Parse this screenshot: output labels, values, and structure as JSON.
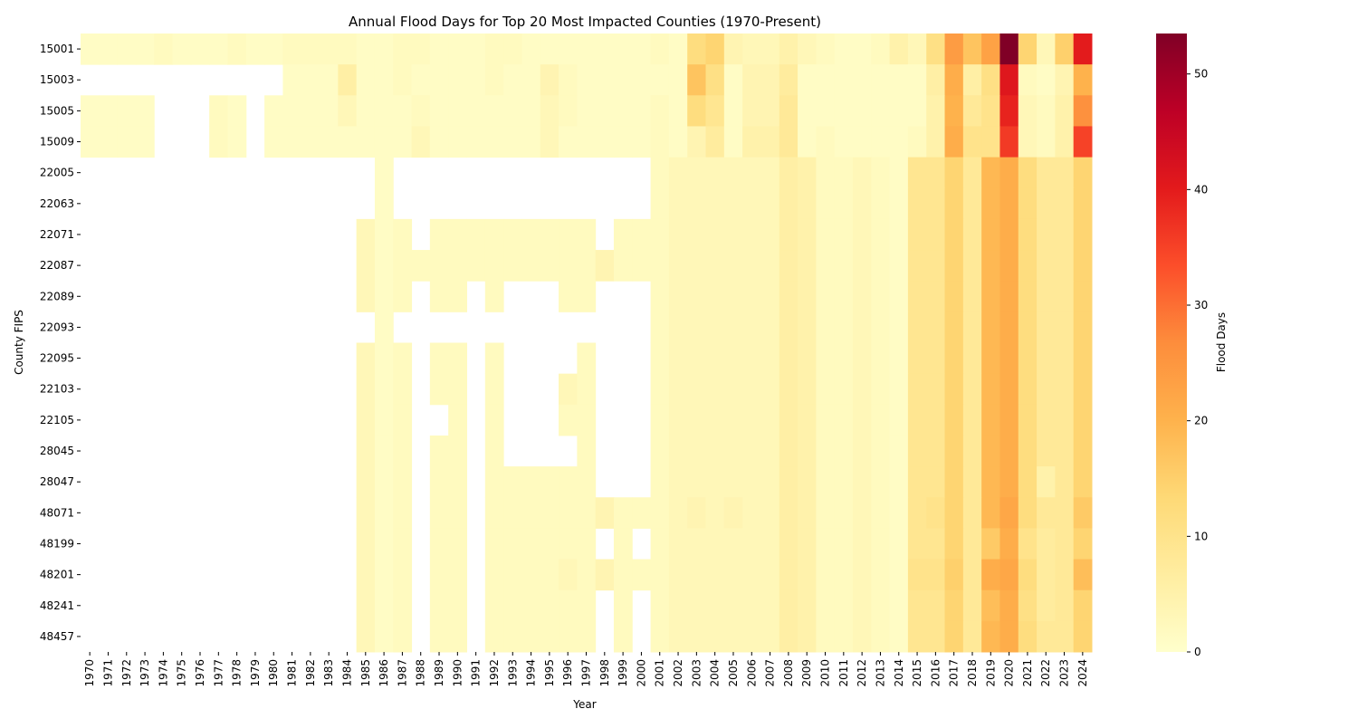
{
  "chart_data": {
    "type": "heatmap",
    "title": "Annual Flood Days for Top 20 Most Impacted Counties (1970-Present)",
    "xlabel": "Year",
    "ylabel": "County FIPS",
    "colorbar_label": "Flood Days",
    "colormap": "YlOrRd",
    "color_range": [
      0,
      53.5
    ],
    "colorbar_ticks": [
      0,
      10,
      20,
      30,
      40,
      50
    ],
    "x": [
      1970,
      1971,
      1972,
      1973,
      1974,
      1975,
      1976,
      1977,
      1978,
      1979,
      1980,
      1981,
      1982,
      1983,
      1984,
      1985,
      1986,
      1987,
      1988,
      1989,
      1990,
      1991,
      1992,
      1993,
      1994,
      1995,
      1996,
      1997,
      1998,
      1999,
      2000,
      2001,
      2002,
      2003,
      2004,
      2005,
      2006,
      2007,
      2008,
      2009,
      2010,
      2011,
      2012,
      2013,
      2014,
      2015,
      2016,
      2017,
      2018,
      2019,
      2020,
      2021,
      2022,
      2023,
      2024
    ],
    "y": [
      "15001",
      "15003",
      "15005",
      "15009",
      "22005",
      "22063",
      "22071",
      "22087",
      "22089",
      "22093",
      "22095",
      "22103",
      "22105",
      "28045",
      "28047",
      "48071",
      "48199",
      "48201",
      "48241",
      "48457"
    ],
    "series": [
      {
        "county": "15001",
        "values": [
          1,
          1,
          1,
          1,
          2,
          1,
          1,
          1,
          2,
          1,
          1,
          2,
          2,
          2,
          2,
          1,
          1,
          2,
          2,
          1,
          1,
          1,
          2,
          2,
          1,
          1,
          1,
          1,
          1,
          1,
          1,
          2,
          1,
          12,
          14,
          4,
          3,
          3,
          5,
          3,
          2,
          1,
          1,
          2,
          5,
          3,
          11,
          24,
          17,
          23,
          53.5,
          14,
          3,
          15,
          40
        ]
      },
      {
        "county": "15003",
        "values": [
          null,
          null,
          null,
          null,
          null,
          null,
          null,
          null,
          null,
          null,
          null,
          1,
          1,
          1,
          6,
          1,
          1,
          2,
          1,
          1,
          1,
          1,
          2,
          1,
          1,
          4,
          2,
          1,
          1,
          1,
          1,
          1,
          1,
          17,
          11,
          1,
          4,
          4,
          7,
          1,
          1,
          1,
          1,
          1,
          1,
          1,
          6,
          21,
          6,
          11,
          41,
          2,
          1,
          4,
          20
        ]
      },
      {
        "county": "15005",
        "values": [
          1,
          1,
          1,
          1,
          null,
          null,
          null,
          2,
          1,
          null,
          1,
          1,
          1,
          1,
          3,
          1,
          1,
          1,
          2,
          1,
          1,
          1,
          1,
          1,
          1,
          3,
          2,
          1,
          1,
          1,
          1,
          2,
          1,
          12,
          9,
          1,
          4,
          4,
          8,
          1,
          1,
          1,
          1,
          1,
          1,
          1,
          5,
          20,
          8,
          10,
          39,
          3,
          2,
          5,
          26
        ]
      },
      {
        "county": "15009",
        "values": [
          1,
          1,
          1,
          1,
          null,
          null,
          null,
          2,
          1,
          null,
          1,
          1,
          1,
          1,
          1,
          1,
          1,
          1,
          3,
          1,
          1,
          1,
          1,
          1,
          1,
          3,
          1,
          1,
          1,
          1,
          1,
          2,
          1,
          4,
          7,
          1,
          5,
          5,
          8,
          1,
          2,
          1,
          1,
          1,
          1,
          2,
          5,
          21,
          10,
          10,
          36,
          3,
          2,
          5,
          35
        ]
      },
      {
        "county": "22005",
        "values": [
          null,
          null,
          null,
          null,
          null,
          null,
          null,
          null,
          null,
          null,
          null,
          null,
          null,
          null,
          null,
          null,
          1,
          null,
          null,
          null,
          null,
          null,
          null,
          null,
          null,
          null,
          null,
          null,
          null,
          null,
          null,
          2,
          3,
          3,
          3,
          3,
          3,
          3,
          6,
          5,
          2,
          2,
          3,
          2,
          1,
          9,
          9,
          14,
          8,
          19,
          21,
          12,
          8,
          8,
          14
        ]
      },
      {
        "county": "22063",
        "values": [
          null,
          null,
          null,
          null,
          null,
          null,
          null,
          null,
          null,
          null,
          null,
          null,
          null,
          null,
          null,
          null,
          1,
          null,
          null,
          null,
          null,
          null,
          null,
          null,
          null,
          null,
          null,
          null,
          null,
          null,
          null,
          2,
          3,
          3,
          3,
          3,
          3,
          3,
          6,
          5,
          2,
          2,
          3,
          2,
          1,
          9,
          9,
          14,
          8,
          19,
          21,
          12,
          8,
          8,
          14
        ]
      },
      {
        "county": "22071",
        "values": [
          null,
          null,
          null,
          null,
          null,
          null,
          null,
          null,
          null,
          null,
          null,
          null,
          null,
          null,
          null,
          3,
          1,
          2,
          null,
          2,
          2,
          2,
          2,
          2,
          2,
          2,
          2,
          2,
          null,
          2,
          2,
          2,
          3,
          3,
          3,
          3,
          3,
          3,
          6,
          5,
          2,
          2,
          3,
          2,
          1,
          9,
          9,
          14,
          8,
          19,
          21,
          12,
          8,
          8,
          14
        ]
      },
      {
        "county": "22087",
        "values": [
          null,
          null,
          null,
          null,
          null,
          null,
          null,
          null,
          null,
          null,
          null,
          null,
          null,
          null,
          null,
          3,
          1,
          2,
          2,
          2,
          2,
          2,
          2,
          2,
          2,
          2,
          2,
          2,
          4,
          2,
          2,
          2,
          3,
          3,
          3,
          3,
          3,
          3,
          6,
          5,
          2,
          2,
          3,
          2,
          1,
          9,
          9,
          14,
          8,
          19,
          21,
          12,
          8,
          8,
          14
        ]
      },
      {
        "county": "22089",
        "values": [
          null,
          null,
          null,
          null,
          null,
          null,
          null,
          null,
          null,
          null,
          null,
          null,
          null,
          null,
          null,
          3,
          1,
          2,
          null,
          2,
          2,
          null,
          2,
          null,
          null,
          null,
          2,
          2,
          null,
          null,
          null,
          2,
          3,
          3,
          3,
          3,
          3,
          3,
          6,
          5,
          2,
          2,
          3,
          2,
          1,
          9,
          9,
          14,
          8,
          19,
          21,
          12,
          8,
          8,
          14
        ]
      },
      {
        "county": "22093",
        "values": [
          null,
          null,
          null,
          null,
          null,
          null,
          null,
          null,
          null,
          null,
          null,
          null,
          null,
          null,
          null,
          null,
          1,
          null,
          null,
          null,
          null,
          null,
          null,
          null,
          null,
          null,
          null,
          null,
          null,
          null,
          null,
          2,
          3,
          3,
          3,
          3,
          3,
          3,
          6,
          5,
          2,
          2,
          3,
          2,
          1,
          9,
          9,
          14,
          8,
          19,
          21,
          12,
          8,
          8,
          14
        ]
      },
      {
        "county": "22095",
        "values": [
          null,
          null,
          null,
          null,
          null,
          null,
          null,
          null,
          null,
          null,
          null,
          null,
          null,
          null,
          null,
          3,
          1,
          2,
          null,
          2,
          2,
          null,
          2,
          null,
          null,
          null,
          null,
          2,
          null,
          null,
          null,
          2,
          3,
          3,
          3,
          3,
          3,
          3,
          6,
          5,
          2,
          2,
          3,
          2,
          1,
          9,
          9,
          14,
          8,
          19,
          21,
          12,
          8,
          8,
          14
        ]
      },
      {
        "county": "22103",
        "values": [
          null,
          null,
          null,
          null,
          null,
          null,
          null,
          null,
          null,
          null,
          null,
          null,
          null,
          null,
          null,
          3,
          1,
          2,
          null,
          2,
          2,
          null,
          2,
          null,
          null,
          null,
          3,
          2,
          null,
          null,
          null,
          2,
          3,
          3,
          3,
          3,
          3,
          3,
          6,
          5,
          2,
          2,
          3,
          2,
          1,
          9,
          9,
          14,
          8,
          19,
          21,
          12,
          8,
          8,
          14
        ]
      },
      {
        "county": "22105",
        "values": [
          null,
          null,
          null,
          null,
          null,
          null,
          null,
          null,
          null,
          null,
          null,
          null,
          null,
          null,
          null,
          3,
          1,
          2,
          null,
          null,
          2,
          null,
          2,
          null,
          null,
          null,
          2,
          2,
          null,
          null,
          null,
          2,
          3,
          3,
          3,
          3,
          3,
          3,
          6,
          5,
          2,
          2,
          3,
          2,
          1,
          9,
          9,
          14,
          8,
          19,
          21,
          12,
          8,
          8,
          14
        ]
      },
      {
        "county": "28045",
        "values": [
          null,
          null,
          null,
          null,
          null,
          null,
          null,
          null,
          null,
          null,
          null,
          null,
          null,
          null,
          null,
          3,
          1,
          2,
          null,
          2,
          2,
          null,
          2,
          null,
          null,
          null,
          null,
          2,
          null,
          null,
          null,
          2,
          3,
          3,
          3,
          3,
          3,
          3,
          6,
          5,
          2,
          2,
          3,
          2,
          1,
          9,
          9,
          14,
          8,
          19,
          21,
          12,
          8,
          8,
          14
        ]
      },
      {
        "county": "28047",
        "values": [
          null,
          null,
          null,
          null,
          null,
          null,
          null,
          null,
          null,
          null,
          null,
          null,
          null,
          null,
          null,
          3,
          1,
          2,
          null,
          2,
          2,
          null,
          2,
          2,
          2,
          2,
          2,
          2,
          null,
          null,
          null,
          2,
          3,
          3,
          3,
          3,
          3,
          3,
          6,
          5,
          2,
          2,
          3,
          2,
          1,
          9,
          9,
          14,
          8,
          19,
          21,
          12,
          5,
          8,
          14
        ]
      },
      {
        "county": "48071",
        "values": [
          null,
          null,
          null,
          null,
          null,
          null,
          null,
          null,
          null,
          null,
          null,
          null,
          null,
          null,
          null,
          3,
          1,
          2,
          null,
          2,
          2,
          null,
          2,
          2,
          2,
          2,
          2,
          2,
          4,
          2,
          2,
          2,
          3,
          4,
          3,
          4,
          3,
          3,
          6,
          5,
          2,
          2,
          3,
          2,
          1,
          9,
          10,
          14,
          8,
          19,
          22,
          12,
          8,
          8,
          16
        ]
      },
      {
        "county": "48199",
        "values": [
          null,
          null,
          null,
          null,
          null,
          null,
          null,
          null,
          null,
          null,
          null,
          null,
          null,
          null,
          null,
          3,
          1,
          2,
          null,
          2,
          2,
          null,
          2,
          2,
          2,
          2,
          2,
          2,
          null,
          2,
          null,
          2,
          3,
          3,
          3,
          3,
          3,
          3,
          6,
          5,
          2,
          2,
          3,
          2,
          1,
          9,
          9,
          14,
          8,
          16,
          21,
          10,
          7,
          8,
          14
        ]
      },
      {
        "county": "48201",
        "values": [
          null,
          null,
          null,
          null,
          null,
          null,
          null,
          null,
          null,
          null,
          null,
          null,
          null,
          null,
          null,
          3,
          1,
          2,
          null,
          2,
          2,
          null,
          2,
          2,
          2,
          2,
          3,
          2,
          4,
          2,
          2,
          2,
          3,
          3,
          3,
          3,
          3,
          3,
          6,
          5,
          2,
          2,
          3,
          2,
          1,
          10,
          10,
          15,
          8,
          21,
          22,
          12,
          7,
          8,
          18
        ]
      },
      {
        "county": "48241",
        "values": [
          null,
          null,
          null,
          null,
          null,
          null,
          null,
          null,
          null,
          null,
          null,
          null,
          null,
          null,
          null,
          3,
          1,
          2,
          null,
          2,
          2,
          null,
          2,
          2,
          2,
          2,
          2,
          2,
          null,
          2,
          null,
          2,
          3,
          3,
          3,
          3,
          3,
          3,
          6,
          5,
          2,
          2,
          3,
          2,
          1,
          9,
          9,
          14,
          8,
          18,
          21,
          11,
          7,
          8,
          14
        ]
      },
      {
        "county": "48457",
        "values": [
          null,
          null,
          null,
          null,
          null,
          null,
          null,
          null,
          null,
          null,
          null,
          null,
          null,
          null,
          null,
          3,
          1,
          2,
          null,
          2,
          2,
          null,
          2,
          2,
          2,
          2,
          2,
          2,
          null,
          2,
          null,
          2,
          3,
          3,
          3,
          3,
          3,
          3,
          6,
          5,
          2,
          2,
          3,
          2,
          1,
          9,
          9,
          14,
          8,
          19,
          21,
          12,
          8,
          8,
          14
        ]
      }
    ]
  }
}
